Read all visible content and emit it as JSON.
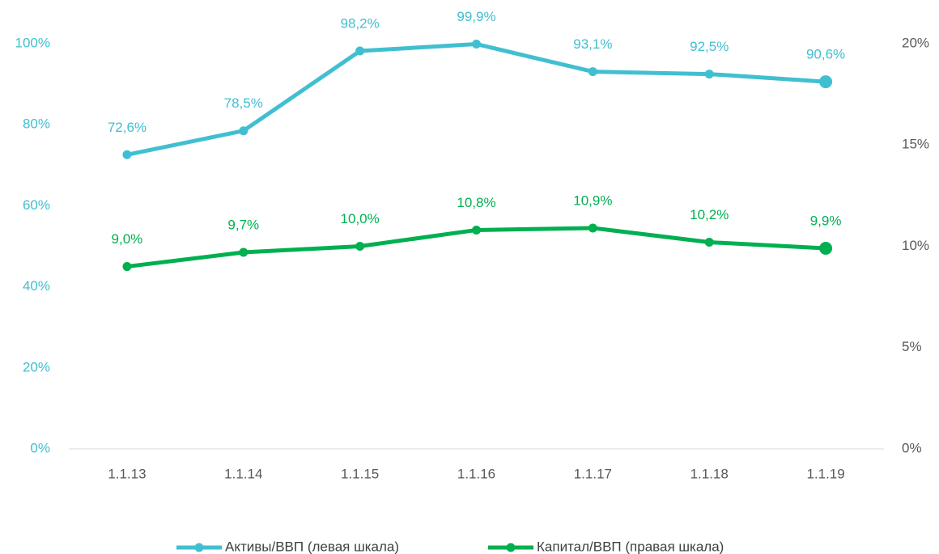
{
  "chart_data": {
    "type": "line",
    "categories": [
      "1.1.13",
      "1.1.14",
      "1.1.15",
      "1.1.16",
      "1.1.17",
      "1.1.18",
      "1.1.19"
    ],
    "series": [
      {
        "name": "Активы/ВВП (левая шкала)",
        "color": "#41bfd0",
        "axis": "y",
        "values": [
          72.6,
          78.5,
          98.2,
          99.9,
          93.1,
          92.5,
          90.6
        ],
        "value_labels": [
          "72,6%",
          "78,5%",
          "98,2%",
          "99,9%",
          "93,1%",
          "92,5%",
          "90,6%"
        ]
      },
      {
        "name": "Капитал/ВВП (правая шкала)",
        "color": "#00b050",
        "axis": "y2",
        "values": [
          9.0,
          9.7,
          10.0,
          10.8,
          10.9,
          10.2,
          9.9
        ],
        "value_labels": [
          "9,0%",
          "9,7%",
          "10,0%",
          "10,8%",
          "10,9%",
          "10,2%",
          "9,9%"
        ]
      }
    ],
    "ylim": [
      0,
      100
    ],
    "yticks": [
      {
        "value": 0,
        "label": "0%"
      },
      {
        "value": 20,
        "label": "20%"
      },
      {
        "value": 40,
        "label": "40%"
      },
      {
        "value": 60,
        "label": "60%"
      },
      {
        "value": 80,
        "label": "80%"
      },
      {
        "value": 100,
        "label": "100%"
      }
    ],
    "y2lim": [
      0,
      20
    ],
    "y2ticks": [
      {
        "value": 0,
        "label": "0%"
      },
      {
        "value": 5,
        "label": "5%"
      },
      {
        "value": 10,
        "label": "10%"
      },
      {
        "value": 15,
        "label": "15%"
      },
      {
        "value": 20,
        "label": "20%"
      }
    ],
    "legend": "bottom",
    "grid": false
  }
}
